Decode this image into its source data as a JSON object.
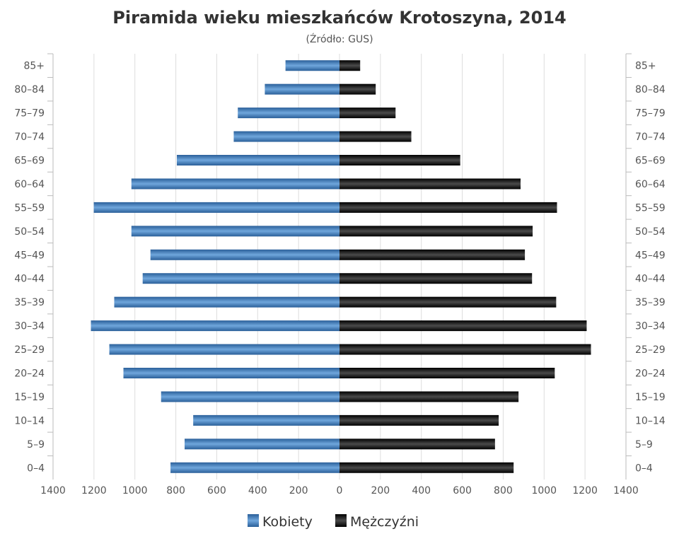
{
  "chart_data": {
    "type": "bar",
    "orientation": "horizontal-population-pyramid",
    "title": "Piramida wieku mieszkańców Krotoszyna, 2014",
    "subtitle": "(Źródło: GUS)",
    "categories": [
      "85+",
      "80-84",
      "75-79",
      "70-74",
      "65-69",
      "60-64",
      "55-59",
      "50-54",
      "45-49",
      "40-44",
      "35-39",
      "30-34",
      "25-29",
      "20-24",
      "15-19",
      "10-14",
      "5-9",
      "0-4"
    ],
    "series": [
      {
        "name": "Kobiety",
        "side": "left",
        "color": "#3b78b8",
        "values": [
          264,
          365,
          497,
          517,
          795,
          1017,
          1201,
          1017,
          924,
          962,
          1101,
          1215,
          1125,
          1056,
          872,
          715,
          757,
          826
        ]
      },
      {
        "name": "Mężczyźni",
        "side": "right",
        "color": "#1a1a1a",
        "values": [
          101,
          177,
          274,
          351,
          590,
          885,
          1063,
          944,
          906,
          941,
          1059,
          1208,
          1229,
          1052,
          875,
          778,
          760,
          851
        ]
      }
    ],
    "xlim": [
      -1400,
      1400
    ],
    "x_ticks": [
      "1400",
      "1200",
      "1000",
      "800",
      "600",
      "400",
      "200",
      "0",
      "200",
      "400",
      "600",
      "800",
      "1000",
      "1200",
      "1400"
    ],
    "grid": true,
    "legend": "bottom"
  }
}
